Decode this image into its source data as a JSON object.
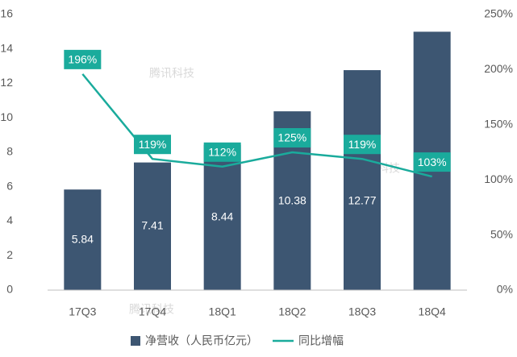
{
  "chart_data": {
    "type": "bar-line",
    "categories": [
      "17Q3",
      "17Q4",
      "18Q1",
      "18Q2",
      "18Q3",
      "18Q4"
    ],
    "series": [
      {
        "name": "净营收（人民币亿元）",
        "type": "bar",
        "color": "#3d5672",
        "values": [
          5.84,
          7.41,
          8.44,
          10.38,
          12.77,
          15.0
        ],
        "value_labels": [
          "5.84",
          "7.41",
          "8.44",
          "10.38",
          "12.77",
          null
        ]
      },
      {
        "name": "同比增幅",
        "type": "line",
        "axis": "y2",
        "color": "#1aab9c",
        "values": [
          196,
          119,
          112,
          125,
          119,
          103
        ],
        "value_labels": [
          "196%",
          "119%",
          "112%",
          "125%",
          "119%",
          "103%"
        ]
      }
    ],
    "ylim": [
      0,
      16
    ],
    "yticks": [
      0,
      2,
      4,
      6,
      8,
      10,
      12,
      14,
      16
    ],
    "y2lim": [
      0,
      250
    ],
    "y2ticks": [
      {
        "value": 0,
        "label": "0%"
      },
      {
        "value": 50,
        "label": "50%"
      },
      {
        "value": 100,
        "label": "100%"
      },
      {
        "value": 150,
        "label": "150%"
      },
      {
        "value": 200,
        "label": "200%"
      },
      {
        "value": 250,
        "label": "250%"
      }
    ],
    "grid": false,
    "legend": "bottom",
    "watermark": "腾讯科技"
  }
}
